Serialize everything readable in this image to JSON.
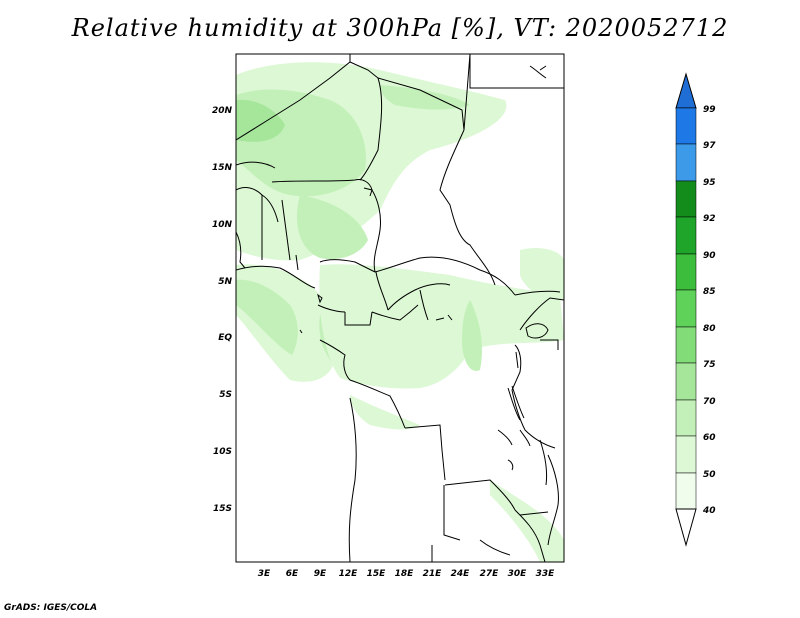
{
  "title": "Relative humidity at 300hPa [%], VT: 2020052712",
  "footer": "GrADS: IGES/COLA",
  "map": {
    "lat_labels": [
      "20N",
      "15N",
      "10N",
      "5N",
      "EQ",
      "5S",
      "10S",
      "15S"
    ],
    "lon_labels": [
      "3E",
      "6E",
      "9E",
      "12E",
      "15E",
      "18E",
      "21E",
      "24E",
      "27E",
      "30E",
      "33E"
    ]
  },
  "colorbar": {
    "labels": [
      "99",
      "97",
      "95",
      "92",
      "90",
      "85",
      "80",
      "75",
      "70",
      "60",
      "50",
      "40"
    ],
    "colors": [
      "#1e6ed6",
      "#1e78e6",
      "#3c9ae8",
      "#148c1c",
      "#1ea52a",
      "#3cbe3c",
      "#5fd25a",
      "#82dc78",
      "#a5e69b",
      "#c3f0b9",
      "#dcf8d4",
      "#f0fcec",
      "#ffffff"
    ]
  }
}
